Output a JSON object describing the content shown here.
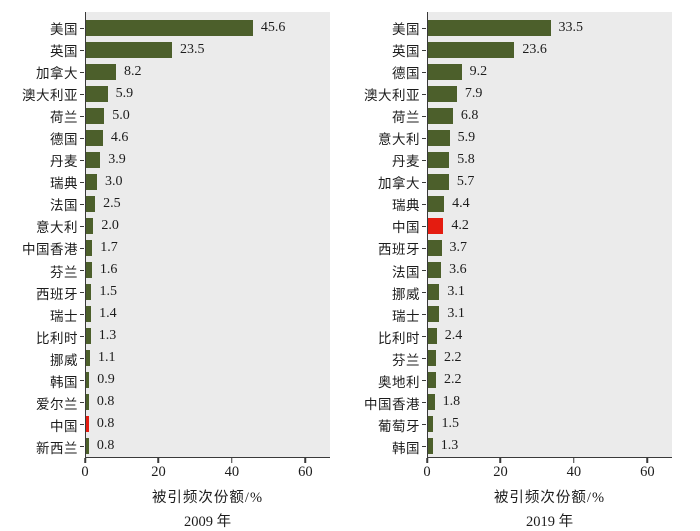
{
  "colors": {
    "bar_green": "#4c5f2b",
    "bar_red_highlight": "#e41c10",
    "plot_background": "#ebebeb",
    "axis_line": "#3a3a3a",
    "text": "#1c1c1c"
  },
  "chart_data": [
    {
      "type": "bar",
      "orientation": "horizontal",
      "title": "",
      "xlabel": "被引频次份额/%",
      "year_label": "2009 年",
      "x_ticks": [
        0,
        20,
        40,
        60
      ],
      "xlim": [
        0,
        66.7
      ],
      "grid": false,
      "legend": false,
      "value_labels_shown": true,
      "highlight_category": "中国",
      "categories": [
        "美国",
        "英国",
        "加拿大",
        "澳大利亚",
        "荷兰",
        "德国",
        "丹麦",
        "瑞典",
        "法国",
        "意大利",
        "中国香港",
        "芬兰",
        "西班牙",
        "瑞士",
        "比利时",
        "挪威",
        "韩国",
        "爱尔兰",
        "中国",
        "新西兰"
      ],
      "values": [
        45.6,
        23.5,
        8.2,
        5.9,
        5.0,
        4.6,
        3.9,
        3.0,
        2.5,
        2.0,
        1.7,
        1.6,
        1.5,
        1.4,
        1.3,
        1.1,
        0.9,
        0.8,
        0.8,
        0.8
      ]
    },
    {
      "type": "bar",
      "orientation": "horizontal",
      "title": "",
      "xlabel": "被引频次份额/%",
      "year_label": "2019 年",
      "x_ticks": [
        0,
        20,
        40,
        60
      ],
      "xlim": [
        0,
        66.7
      ],
      "grid": false,
      "legend": false,
      "value_labels_shown": true,
      "highlight_category": "中国",
      "categories": [
        "美国",
        "英国",
        "德国",
        "澳大利亚",
        "荷兰",
        "意大利",
        "丹麦",
        "加拿大",
        "瑞典",
        "中国",
        "西班牙",
        "法国",
        "挪威",
        "瑞士",
        "比利时",
        "芬兰",
        "奥地利",
        "中国香港",
        "葡萄牙",
        "韩国"
      ],
      "values": [
        33.5,
        23.6,
        9.2,
        7.9,
        6.8,
        5.9,
        5.8,
        5.7,
        4.4,
        4.2,
        3.7,
        3.6,
        3.1,
        3.1,
        2.4,
        2.2,
        2.2,
        1.8,
        1.5,
        1.3
      ]
    }
  ]
}
